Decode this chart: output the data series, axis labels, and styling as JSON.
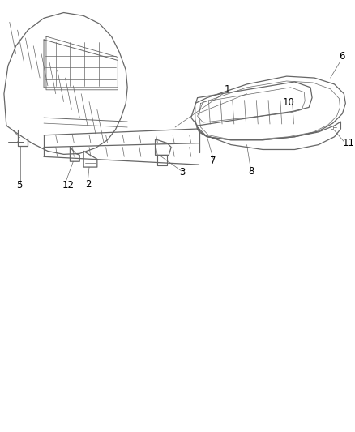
{
  "background_color": "#ffffff",
  "line_color": "#666666",
  "label_color": "#000000",
  "figsize": [
    4.38,
    5.33
  ],
  "dpi": 100,
  "font_size": 8.5
}
